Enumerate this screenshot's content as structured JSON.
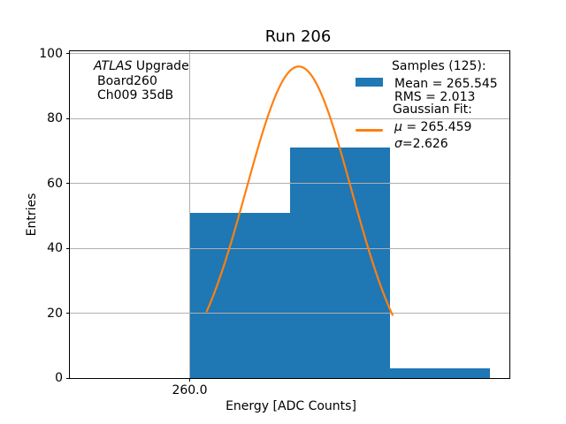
{
  "title": "Run 206",
  "axis": {
    "xlabel": "Energy [ADC Counts]",
    "ylabel": "Entries"
  },
  "annotation": {
    "line1_italic": "ATLAS",
    "line1_rest": " Upgrade",
    "line2": "Board260",
    "line3": "Ch009 35dB"
  },
  "legend": {
    "samples_header": "Samples (125):",
    "mean": "Mean = 265.545",
    "rms": "RMS = 2.013",
    "fit_header": "Gaussian Fit:",
    "mu_symbol": "μ",
    "mu_rest": " = 265.459",
    "sigma_symbol": "σ",
    "sigma_rest": "=2.626"
  },
  "colors": {
    "histogram": "#1f77b4",
    "fit_line": "#ff7f0e",
    "grid": "#b0b0b0",
    "spine": "#000000"
  },
  "chart_data": {
    "type": "bar",
    "subtype": "histogram_with_gaussian_fit",
    "title": "Run 206",
    "xlabel": "Energy [ADC Counts]",
    "ylabel": "Entries",
    "samples": 125,
    "mean": 265.545,
    "rms": 2.013,
    "histogram": {
      "bin_edges": [
        260.0,
        265.0,
        270.0,
        275.0
      ],
      "counts": [
        51,
        71,
        3
      ]
    },
    "gaussian_fit": {
      "amplitude": 96,
      "mu": 265.459,
      "sigma": 2.626,
      "x_range": [
        260.85,
        270.15
      ]
    },
    "xlim": [
      254,
      276
    ],
    "ylim": [
      0,
      100.7
    ],
    "x_ticks": [
      260.0
    ],
    "x_tick_labels": [
      "260.0"
    ],
    "y_ticks": [
      0,
      20,
      40,
      60,
      80,
      100
    ],
    "y_tick_labels": [
      "0",
      "20",
      "40",
      "60",
      "80",
      "100"
    ],
    "grid": true,
    "grid_above_bars": true,
    "legend_position": "upper right",
    "legend_frame": false
  }
}
